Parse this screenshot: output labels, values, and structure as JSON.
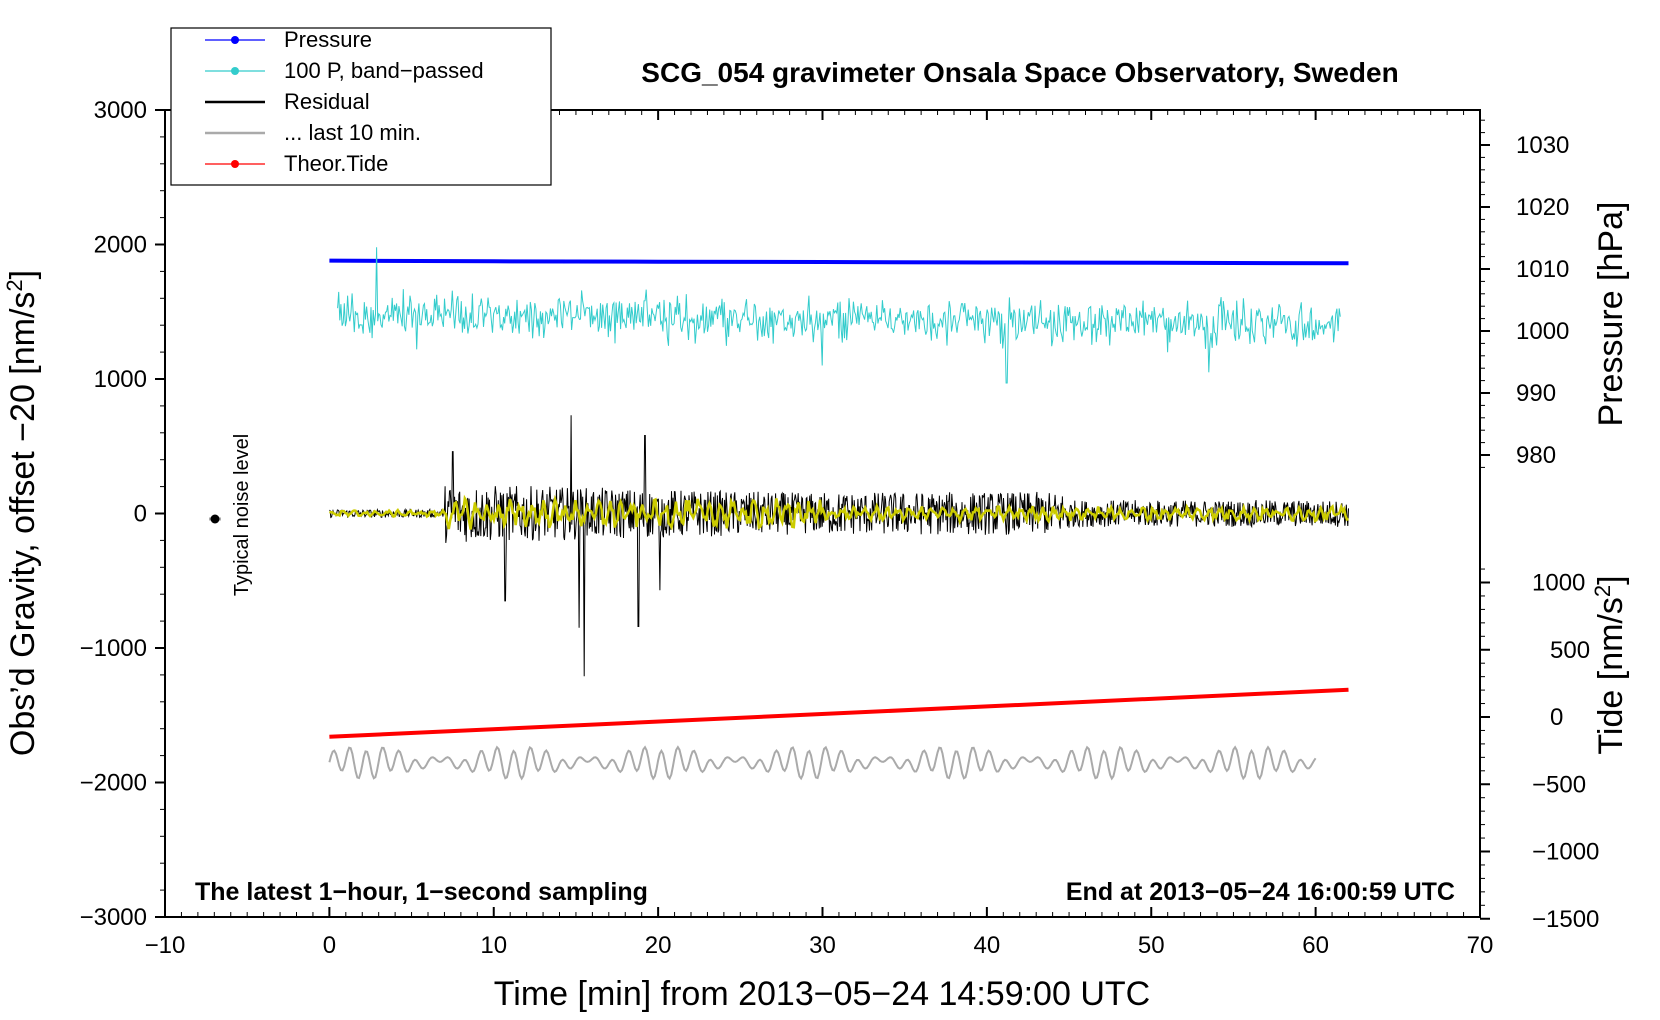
{
  "chart_data": {
    "type": "line",
    "title": "SCG_054 gravimeter Onsala Space Observatory, Sweden",
    "xlabel": "Time [min] from 2013−05−24 14:59:00 UTC",
    "ylabel_left": "Obs’d Gravity, offset −20 [nm/s",
    "ylabel_left_sup": "2",
    "ylabel_left_end": "]",
    "ylabel_pressure": "Pressure [hPa]",
    "ylabel_tide": "Tide [nm/s",
    "ylabel_tide_sup": "2",
    "ylabel_tide_end": "]",
    "xlim": [
      -10,
      70
    ],
    "ylim_left": [
      -3000,
      3000
    ],
    "xticks": [
      -10,
      0,
      10,
      20,
      30,
      40,
      50,
      60,
      70
    ],
    "xtick_labels": [
      "−10",
      "0",
      "10",
      "20",
      "30",
      "40",
      "50",
      "60",
      "70"
    ],
    "yticks_left": [
      -3000,
      -2000,
      -1000,
      0,
      1000,
      2000,
      3000
    ],
    "ytick_labels_left": [
      "−3000",
      "−2000",
      "−1000",
      "0",
      "1000",
      "2000",
      "3000"
    ],
    "pressure_ticks": [
      980,
      990,
      1000,
      1010,
      1020,
      1030
    ],
    "pressure_tick_labels": [
      "980",
      "990",
      "1000",
      "1010",
      "1020",
      "1030"
    ],
    "tide_ticks": [
      -1500,
      -1000,
      -500,
      0,
      500,
      1000
    ],
    "tide_tick_labels": [
      "−1500",
      "−1000",
      "−500",
      "0",
      "500",
      "1000"
    ],
    "annotations": {
      "bottom_left": "The latest 1−hour, 1−second sampling",
      "bottom_right": "End at 2013−05−24 16:00:59 UTC",
      "noise_label": "Typical noise level"
    },
    "legend": [
      {
        "label": "Pressure",
        "color": "#0000ff",
        "marker": true
      },
      {
        "label": "100 P, band−passed",
        "color": "#33cccc",
        "marker": true
      },
      {
        "label": "Residual",
        "color": "#000000",
        "marker": false
      },
      {
        "label": "... last 10 min.",
        "color": "#aaaaaa",
        "marker": false
      },
      {
        "label": "Theor.Tide",
        "color": "#ff0000",
        "marker": true
      }
    ],
    "legend_position": "top-left",
    "colors": {
      "pressure": "#0000ff",
      "bandpassed": "#33cccc",
      "residual": "#000000",
      "residual_smooth": "#cccc00",
      "last10": "#aaaaaa",
      "tide": "#ff0000"
    },
    "series": [
      {
        "name": "Pressure",
        "x": [
          0,
          10,
          20,
          30,
          40,
          50,
          62
        ],
        "y": [
          1880,
          1875,
          1872,
          1870,
          1866,
          1864,
          1860
        ],
        "unit_y": "nm/s2 plot units"
      },
      {
        "name": "100 P, band−passed",
        "x_range": [
          0.5,
          61.5
        ],
        "center": 1480,
        "amplitude": 150,
        "spikes": [
          [
            2.9,
            1980
          ],
          [
            5.3,
            1220
          ],
          [
            30.0,
            1100
          ],
          [
            41.2,
            970
          ],
          [
            53.5,
            1050
          ]
        ]
      },
      {
        "name": "Residual",
        "x_range": [
          0,
          62
        ],
        "center": 0,
        "spikes": [
          [
            7.5,
            460
          ],
          [
            10.7,
            -650
          ],
          [
            14.7,
            730
          ],
          [
            15.2,
            -850
          ],
          [
            15.5,
            -1210
          ],
          [
            18.8,
            -840
          ],
          [
            19.2,
            580
          ],
          [
            20.1,
            -570
          ]
        ]
      },
      {
        "name": "... last 10 min.",
        "x_range": [
          0,
          60
        ],
        "center": -1850,
        "amplitude": 110
      },
      {
        "name": "Theor.Tide",
        "x": [
          0,
          62
        ],
        "y": [
          -1660,
          -1310
        ]
      }
    ],
    "noise_marker": {
      "x": -7,
      "y": 0
    }
  }
}
